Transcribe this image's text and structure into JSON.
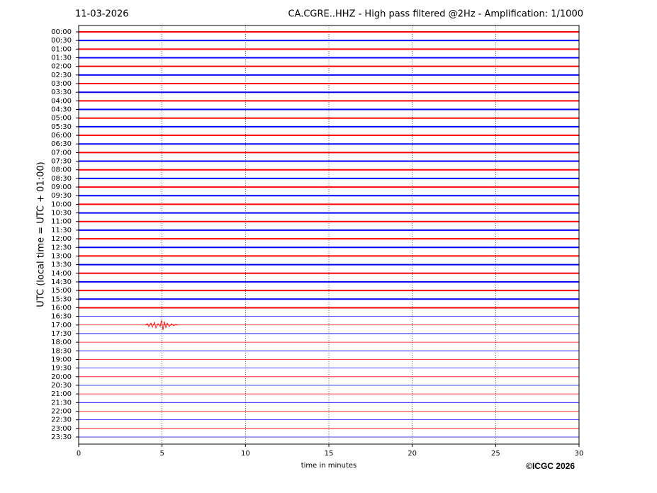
{
  "chart_data": {
    "type": "helicorder",
    "date": "11-03-2026",
    "title": "CA.CGRE..HHZ - High pass filtered @2Hz - Amplification: 1/1000",
    "y_label": "UTC (local time = UTC + 01:00)",
    "x_label": "time in minutes",
    "credit": "©ICGC 2026",
    "categories": [
      "00:00",
      "00:30",
      "01:00",
      "01:30",
      "02:00",
      "02:30",
      "03:00",
      "03:30",
      "04:00",
      "04:30",
      "05:00",
      "05:30",
      "06:00",
      "06:30",
      "07:00",
      "07:30",
      "08:00",
      "08:30",
      "09:00",
      "09:30",
      "10:00",
      "10:30",
      "11:00",
      "11:30",
      "12:00",
      "12:30",
      "13:00",
      "13:30",
      "14:00",
      "14:30",
      "15:00",
      "15:30",
      "16:00",
      "16:30",
      "17:00",
      "17:30",
      "18:00",
      "18:30",
      "19:00",
      "19:30",
      "20:00",
      "20:30",
      "21:00",
      "21:30",
      "22:00",
      "22:30",
      "23:00",
      "23:30"
    ],
    "trace_colors": [
      "#ff0000",
      "#0000ff"
    ],
    "xlim": [
      0,
      30
    ],
    "xticks": [
      0,
      5,
      10,
      15,
      20,
      25,
      30
    ],
    "grid": true
  }
}
